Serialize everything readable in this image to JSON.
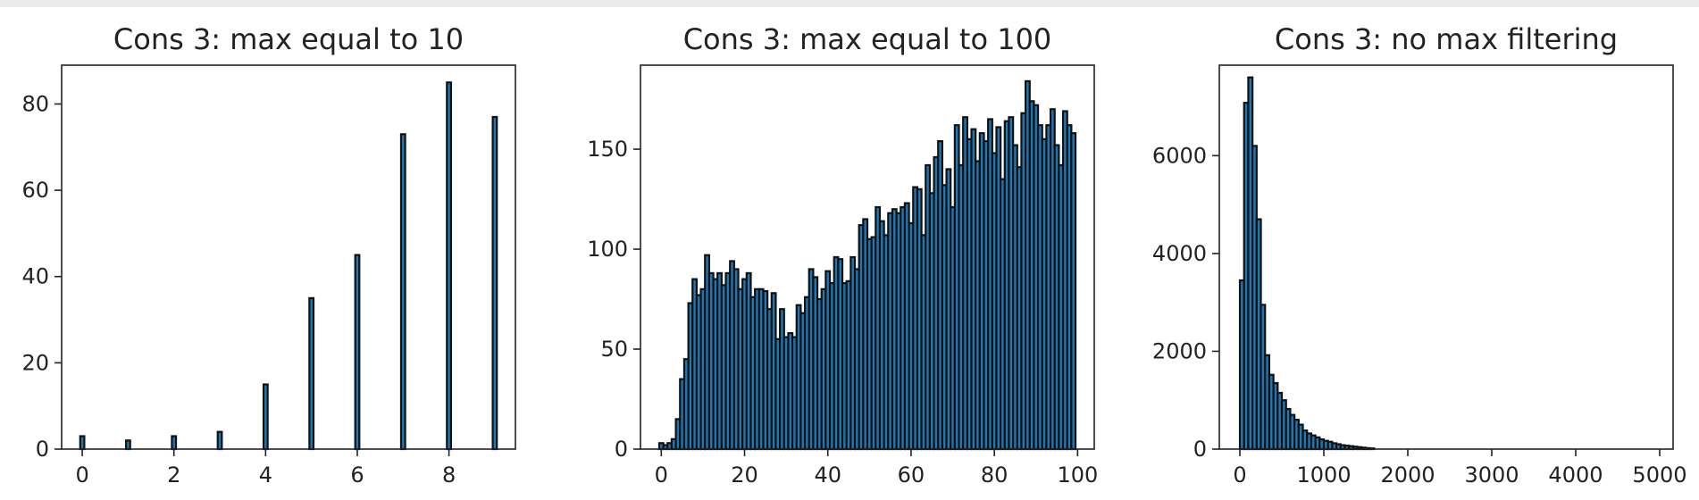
{
  "chart_data": [
    {
      "type": "bar",
      "title": "Cons 3: max equal to 10",
      "xlabel": "",
      "ylabel": "",
      "xlim": [
        -0.45,
        9.45
      ],
      "ylim": [
        0,
        89
      ],
      "xticks": [
        0,
        2,
        4,
        6,
        8
      ],
      "yticks": [
        0,
        20,
        40,
        60,
        80
      ],
      "grid": false,
      "bar_width": 0.09,
      "x": [
        0,
        1,
        2,
        3,
        4,
        5,
        6,
        7,
        8,
        9
      ],
      "values": [
        3,
        2,
        3,
        4,
        15,
        35,
        45,
        73,
        85,
        77
      ]
    },
    {
      "type": "bar",
      "title": "Cons 3: max equal to 100",
      "xlabel": "",
      "ylabel": "",
      "xlim": [
        -5,
        104
      ],
      "ylim": [
        0,
        192
      ],
      "xticks": [
        0,
        20,
        40,
        60,
        80,
        100
      ],
      "yticks": [
        0,
        50,
        100,
        150
      ],
      "grid": false,
      "bar_width": 1,
      "x": [
        0,
        1,
        2,
        3,
        4,
        5,
        6,
        7,
        8,
        9,
        10,
        11,
        12,
        13,
        14,
        15,
        16,
        17,
        18,
        19,
        20,
        21,
        22,
        23,
        24,
        25,
        26,
        27,
        28,
        29,
        30,
        31,
        32,
        33,
        34,
        35,
        36,
        37,
        38,
        39,
        40,
        41,
        42,
        43,
        44,
        45,
        46,
        47,
        48,
        49,
        50,
        51,
        52,
        53,
        54,
        55,
        56,
        57,
        58,
        59,
        60,
        61,
        62,
        63,
        64,
        65,
        66,
        67,
        68,
        69,
        70,
        71,
        72,
        73,
        74,
        75,
        76,
        77,
        78,
        79,
        80,
        81,
        82,
        83,
        84,
        85,
        86,
        87,
        88,
        89,
        90,
        91,
        92,
        93,
        94,
        95,
        96,
        97,
        98,
        99
      ],
      "values": [
        3,
        2,
        3,
        5,
        15,
        35,
        45,
        73,
        85,
        77,
        80,
        97,
        88,
        85,
        88,
        82,
        88,
        94,
        90,
        80,
        85,
        88,
        76,
        80,
        80,
        79,
        70,
        78,
        55,
        70,
        56,
        58,
        56,
        72,
        68,
        76,
        90,
        86,
        75,
        80,
        89,
        83,
        96,
        95,
        83,
        84,
        96,
        90,
        112,
        115,
        105,
        106,
        121,
        114,
        107,
        118,
        120,
        118,
        121,
        123,
        113,
        131,
        130,
        107,
        142,
        128,
        146,
        154,
        132,
        140,
        121,
        162,
        142,
        166,
        155,
        160,
        144,
        158,
        154,
        165,
        148,
        161,
        135,
        164,
        166,
        152,
        141,
        168,
        184,
        174,
        172,
        162,
        155,
        162,
        170,
        152,
        142,
        169,
        162,
        158
      ]
    },
    {
      "type": "bar",
      "title": "Cons 3: no max filtering",
      "xlabel": "",
      "ylabel": "",
      "xlim": [
        -245,
        5160
      ],
      "ylim": [
        0,
        7850
      ],
      "xticks": [
        0,
        1000,
        2000,
        3000,
        4000,
        5000
      ],
      "yticks": [
        0,
        2000,
        4000,
        6000
      ],
      "grid": false,
      "bar_width": 50,
      "x": [
        25,
        75,
        125,
        175,
        225,
        275,
        325,
        375,
        425,
        475,
        525,
        575,
        625,
        675,
        725,
        775,
        825,
        875,
        925,
        975,
        1025,
        1075,
        1125,
        1175,
        1225,
        1275,
        1325,
        1375,
        1425,
        1475,
        1525,
        1575
      ],
      "values": [
        3450,
        7080,
        7600,
        6200,
        4700,
        2950,
        1920,
        1520,
        1350,
        1150,
        1000,
        820,
        700,
        600,
        500,
        380,
        320,
        280,
        240,
        200,
        170,
        150,
        120,
        100,
        80,
        70,
        60,
        50,
        40,
        30,
        20,
        15
      ]
    }
  ]
}
